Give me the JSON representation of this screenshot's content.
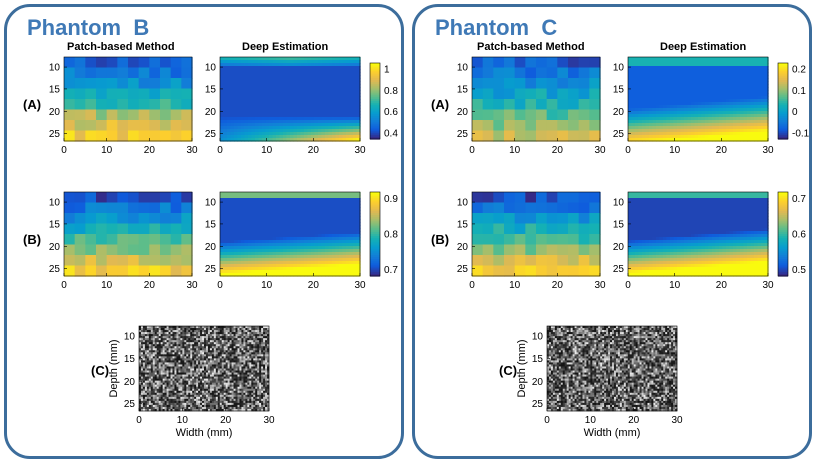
{
  "panels": [
    {
      "title": "Phantom  B",
      "col_titles": [
        "Patch-based Method",
        "Deep Estimation"
      ],
      "row_labels": [
        "(A)",
        "(B)",
        "(C)"
      ],
      "rowA": {
        "colorbar_ticks": [
          "1",
          "0.8",
          "0.6",
          "0.4"
        ]
      },
      "rowB": {
        "colorbar_ticks": [
          "0.9",
          "0.8",
          "0.7"
        ]
      }
    },
    {
      "title": "Phantom  C",
      "col_titles": [
        "Patch-based Method",
        "Deep Estimation"
      ],
      "row_labels": [
        "(A)",
        "(B)",
        "(C)"
      ],
      "rowA": {
        "colorbar_ticks": [
          "0.2",
          "0.1",
          "0",
          "-0.1"
        ]
      },
      "rowB": {
        "colorbar_ticks": [
          "0.7",
          "0.6",
          "0.5"
        ]
      }
    }
  ],
  "axes": {
    "y_ticks": [
      "10",
      "15",
      "20",
      "25"
    ],
    "x_ticks": [
      "0",
      "10",
      "20",
      "30"
    ],
    "bmode_y_ticks": [
      "10",
      "15",
      "20",
      "25"
    ],
    "bmode_x_ticks": [
      "0",
      "10",
      "20",
      "30"
    ],
    "bmode_xlabel": "Width (mm)",
    "bmode_ylabel": "Depth (mm)"
  },
  "colors": {
    "border": "#3c6d9c",
    "title": "#3f79b6",
    "colormap": "parula"
  }
}
